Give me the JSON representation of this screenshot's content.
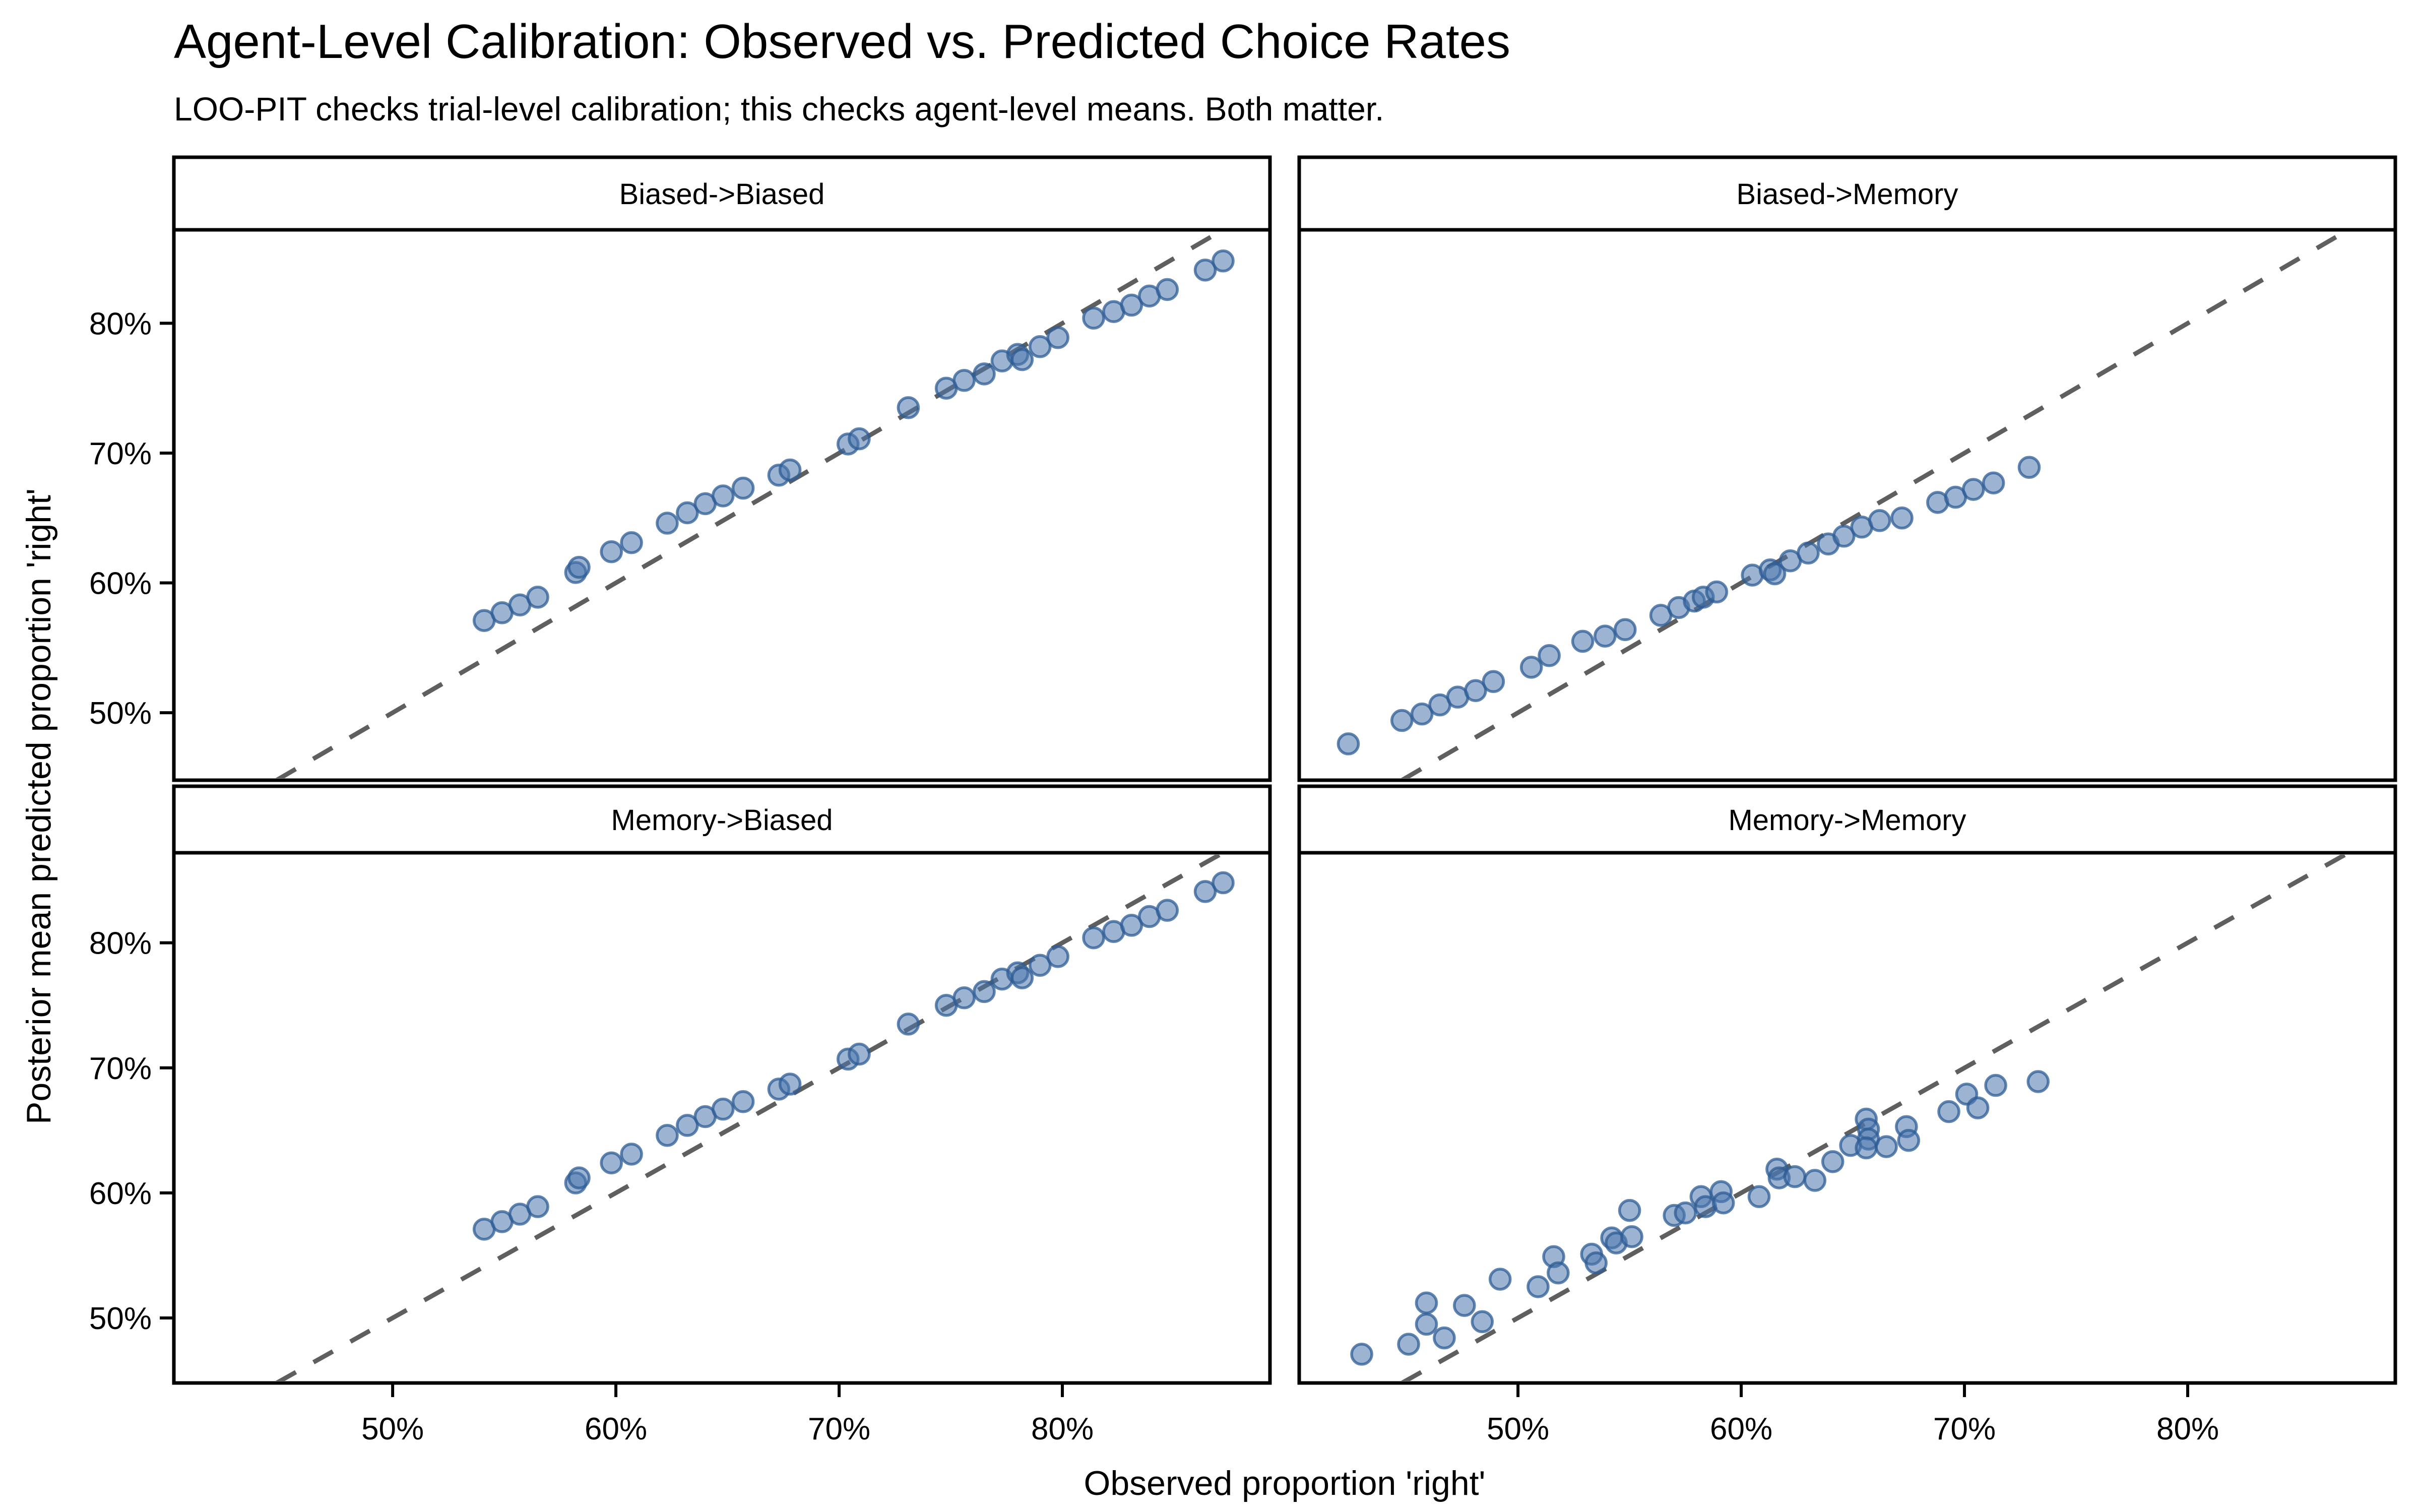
{
  "title": "Agent-Level Calibration: Observed vs. Predicted Choice Rates",
  "subtitle": "LOO-PIT checks trial-level calibration; this checks agent-level means. Both matter.",
  "x_axis": {
    "label": "Observed proportion 'right'",
    "ticks": [
      50,
      60,
      70,
      80
    ],
    "tick_labels": [
      "50%",
      "60%",
      "70%",
      "80%"
    ],
    "range": [
      40.2,
      89.3
    ]
  },
  "y_axis": {
    "label": "Posterior mean predicted proportion 'right'",
    "ticks": [
      50,
      60,
      70,
      80
    ],
    "tick_labels": [
      "50%",
      "60%",
      "70%",
      "80%"
    ],
    "range": [
      44.8,
      87.2
    ]
  },
  "colors": {
    "point_fill": "#4a77ad",
    "point_stroke": "#2e5c94",
    "reference_line": "#5f5f5f",
    "panel_border": "#000000",
    "strip_background": "#ffffff",
    "text": "#000000"
  },
  "chart_data": {
    "type": "scatter",
    "reference_line": "y = x, dashed, per facet",
    "x_unit": "percent",
    "y_unit": "percent",
    "facets": [
      {
        "label": "Biased->Biased",
        "points": [
          [
            54.1,
            57.1
          ],
          [
            54.9,
            57.7
          ],
          [
            55.7,
            58.3
          ],
          [
            56.5,
            58.9
          ],
          [
            58.2,
            60.8
          ],
          [
            58.35,
            61.2
          ],
          [
            59.8,
            62.4
          ],
          [
            60.7,
            63.1
          ],
          [
            62.3,
            64.6
          ],
          [
            63.2,
            65.4
          ],
          [
            64.0,
            66.1
          ],
          [
            64.8,
            66.7
          ],
          [
            65.7,
            67.3
          ],
          [
            67.3,
            68.3
          ],
          [
            67.8,
            68.7
          ],
          [
            70.4,
            70.7
          ],
          [
            70.9,
            71.1
          ],
          [
            73.1,
            73.5
          ],
          [
            74.8,
            75.0
          ],
          [
            75.6,
            75.6
          ],
          [
            76.5,
            76.1
          ],
          [
            77.3,
            77.1
          ],
          [
            78.0,
            77.6
          ],
          [
            78.2,
            77.2
          ],
          [
            79.0,
            78.2
          ],
          [
            79.8,
            78.9
          ],
          [
            81.4,
            80.4
          ],
          [
            82.3,
            80.9
          ],
          [
            83.1,
            81.4
          ],
          [
            83.9,
            82.1
          ],
          [
            84.7,
            82.6
          ],
          [
            86.4,
            84.1
          ],
          [
            87.2,
            84.8
          ]
        ]
      },
      {
        "label": "Biased->Memory",
        "points": [
          [
            42.4,
            47.6
          ],
          [
            44.8,
            49.4
          ],
          [
            45.7,
            49.9
          ],
          [
            46.5,
            50.6
          ],
          [
            47.3,
            51.2
          ],
          [
            48.1,
            51.7
          ],
          [
            48.9,
            52.4
          ],
          [
            50.6,
            53.5
          ],
          [
            51.4,
            54.4
          ],
          [
            52.9,
            55.5
          ],
          [
            53.9,
            55.9
          ],
          [
            54.8,
            56.4
          ],
          [
            56.4,
            57.5
          ],
          [
            57.2,
            58.1
          ],
          [
            57.9,
            58.6
          ],
          [
            58.3,
            58.9
          ],
          [
            58.9,
            59.3
          ],
          [
            60.5,
            60.6
          ],
          [
            61.3,
            61.0
          ],
          [
            61.5,
            60.7
          ],
          [
            62.2,
            61.7
          ],
          [
            63.0,
            62.3
          ],
          [
            63.9,
            63.0
          ],
          [
            64.6,
            63.6
          ],
          [
            65.4,
            64.3
          ],
          [
            66.2,
            64.8
          ],
          [
            67.2,
            65.0
          ],
          [
            68.8,
            66.2
          ],
          [
            69.6,
            66.6
          ],
          [
            70.4,
            67.2
          ],
          [
            71.3,
            67.7
          ],
          [
            72.9,
            68.9
          ]
        ]
      },
      {
        "label": "Memory->Biased",
        "points": [
          [
            54.1,
            57.1
          ],
          [
            54.9,
            57.7
          ],
          [
            55.7,
            58.3
          ],
          [
            56.5,
            58.9
          ],
          [
            58.2,
            60.8
          ],
          [
            58.35,
            61.2
          ],
          [
            59.8,
            62.4
          ],
          [
            60.7,
            63.1
          ],
          [
            62.3,
            64.6
          ],
          [
            63.2,
            65.4
          ],
          [
            64.0,
            66.1
          ],
          [
            64.8,
            66.7
          ],
          [
            65.7,
            67.3
          ],
          [
            67.3,
            68.3
          ],
          [
            67.8,
            68.7
          ],
          [
            70.4,
            70.7
          ],
          [
            70.9,
            71.1
          ],
          [
            73.1,
            73.5
          ],
          [
            74.8,
            75.0
          ],
          [
            75.6,
            75.6
          ],
          [
            76.5,
            76.1
          ],
          [
            77.3,
            77.1
          ],
          [
            78.0,
            77.6
          ],
          [
            78.2,
            77.2
          ],
          [
            79.0,
            78.2
          ],
          [
            79.8,
            78.9
          ],
          [
            81.4,
            80.4
          ],
          [
            82.3,
            80.9
          ],
          [
            83.1,
            81.4
          ],
          [
            83.9,
            82.1
          ],
          [
            84.7,
            82.6
          ],
          [
            86.4,
            84.1
          ],
          [
            87.2,
            84.8
          ]
        ]
      },
      {
        "label": "Memory->Memory",
        "points": [
          [
            43.0,
            47.1
          ],
          [
            45.1,
            47.9
          ],
          [
            45.9,
            49.5
          ],
          [
            45.9,
            51.2
          ],
          [
            46.7,
            48.4
          ],
          [
            47.6,
            51.0
          ],
          [
            48.4,
            49.7
          ],
          [
            49.2,
            53.1
          ],
          [
            50.9,
            52.5
          ],
          [
            51.6,
            54.9
          ],
          [
            51.8,
            53.6
          ],
          [
            53.3,
            55.1
          ],
          [
            53.5,
            54.4
          ],
          [
            54.2,
            56.4
          ],
          [
            54.4,
            56.0
          ],
          [
            55.0,
            58.6
          ],
          [
            55.1,
            56.5
          ],
          [
            57.0,
            58.2
          ],
          [
            57.5,
            58.4
          ],
          [
            58.2,
            59.7
          ],
          [
            58.4,
            58.9
          ],
          [
            59.1,
            60.1
          ],
          [
            59.2,
            59.2
          ],
          [
            60.8,
            59.7
          ],
          [
            61.6,
            61.9
          ],
          [
            61.7,
            61.2
          ],
          [
            62.4,
            61.3
          ],
          [
            63.3,
            61.0
          ],
          [
            64.1,
            62.5
          ],
          [
            64.9,
            63.8
          ],
          [
            65.6,
            65.9
          ],
          [
            65.7,
            65.1
          ],
          [
            65.7,
            64.3
          ],
          [
            65.6,
            63.6
          ],
          [
            66.5,
            63.7
          ],
          [
            67.4,
            65.3
          ],
          [
            67.5,
            64.2
          ],
          [
            69.3,
            66.5
          ],
          [
            70.1,
            67.9
          ],
          [
            70.6,
            66.8
          ],
          [
            71.4,
            68.6
          ],
          [
            73.3,
            68.9
          ]
        ]
      }
    ]
  }
}
